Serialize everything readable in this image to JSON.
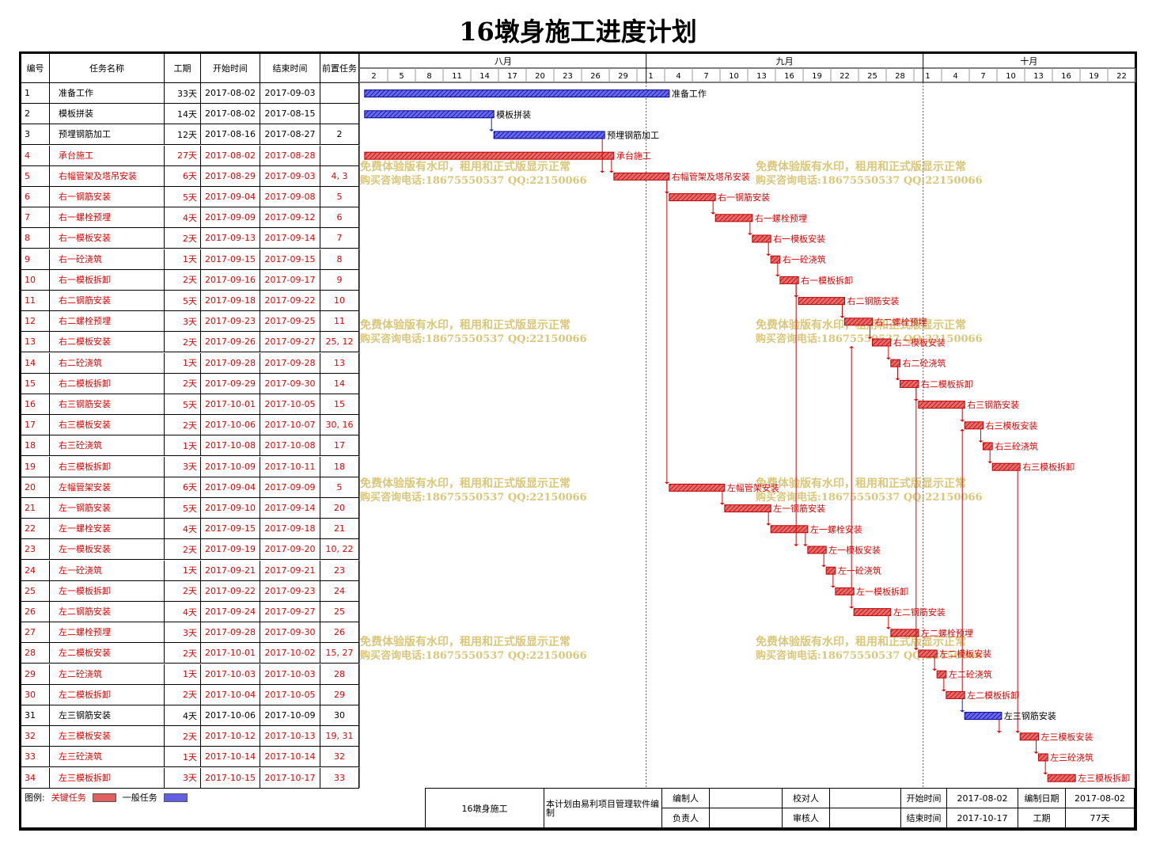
{
  "title": "16墩身施工进度计划",
  "headers": {
    "id": "编号",
    "name": "任务名称",
    "dur": "工期",
    "start": "开始时间",
    "end": "结束时间",
    "pred": "前置任务"
  },
  "months": [
    "八月",
    "九月",
    "十月"
  ],
  "day_ticks": [
    "2",
    "5",
    "8",
    "11",
    "14",
    "17",
    "20",
    "23",
    "26",
    "29",
    "1",
    "4",
    "7",
    "10",
    "13",
    "16",
    "19",
    "22",
    "25",
    "28",
    "1",
    "4",
    "7",
    "10",
    "13",
    "16",
    "19",
    "22"
  ],
  "watermark": {
    "line1": "免费体验版有水印，租用和正式版显示正常",
    "line2": "购买咨询电话:18675550537 QQ:22150066"
  },
  "colors": {
    "critical": "#e00000",
    "normal": "#2020c0",
    "watermark": "#d6c06a"
  },
  "chart_data": {
    "type": "gantt",
    "title": "16墩身施工进度计划",
    "x_range": [
      "2017-08-01",
      "2017-10-23"
    ],
    "tasks": [
      {
        "id": "1",
        "name": "准备工作",
        "dur": "33天",
        "start": "2017-08-02",
        "end": "2017-09-03",
        "pred": "",
        "critical": false
      },
      {
        "id": "2",
        "name": "模板拼装",
        "dur": "14天",
        "start": "2017-08-02",
        "end": "2017-08-15",
        "pred": "",
        "critical": false
      },
      {
        "id": "3",
        "name": "预埋钢筋加工",
        "dur": "12天",
        "start": "2017-08-16",
        "end": "2017-08-27",
        "pred": "2",
        "critical": false
      },
      {
        "id": "4",
        "name": "承台施工",
        "dur": "27天",
        "start": "2017-08-02",
        "end": "2017-08-28",
        "pred": "",
        "critical": true
      },
      {
        "id": "5",
        "name": "右幅管架及塔吊安装",
        "dur": "6天",
        "start": "2017-08-29",
        "end": "2017-09-03",
        "pred": "4, 3",
        "critical": true
      },
      {
        "id": "6",
        "name": "右一钢筋安装",
        "dur": "5天",
        "start": "2017-09-04",
        "end": "2017-09-08",
        "pred": "5",
        "critical": true
      },
      {
        "id": "7",
        "name": "右一螺栓预埋",
        "dur": "4天",
        "start": "2017-09-09",
        "end": "2017-09-12",
        "pred": "6",
        "critical": true
      },
      {
        "id": "8",
        "name": "右一模板安装",
        "dur": "2天",
        "start": "2017-09-13",
        "end": "2017-09-14",
        "pred": "7",
        "critical": true
      },
      {
        "id": "9",
        "name": "右一砼浇筑",
        "dur": "1天",
        "start": "2017-09-15",
        "end": "2017-09-15",
        "pred": "8",
        "critical": true
      },
      {
        "id": "10",
        "name": "右一模板拆卸",
        "dur": "2天",
        "start": "2017-09-16",
        "end": "2017-09-17",
        "pred": "9",
        "critical": true
      },
      {
        "id": "11",
        "name": "右二钢筋安装",
        "dur": "5天",
        "start": "2017-09-18",
        "end": "2017-09-22",
        "pred": "10",
        "critical": true
      },
      {
        "id": "12",
        "name": "右二螺栓预埋",
        "dur": "3天",
        "start": "2017-09-23",
        "end": "2017-09-25",
        "pred": "11",
        "critical": true
      },
      {
        "id": "13",
        "name": "右二模板安装",
        "dur": "2天",
        "start": "2017-09-26",
        "end": "2017-09-27",
        "pred": "25, 12",
        "critical": true
      },
      {
        "id": "14",
        "name": "右二砼浇筑",
        "dur": "1天",
        "start": "2017-09-28",
        "end": "2017-09-28",
        "pred": "13",
        "critical": true
      },
      {
        "id": "15",
        "name": "右二模板拆卸",
        "dur": "2天",
        "start": "2017-09-29",
        "end": "2017-09-30",
        "pred": "14",
        "critical": true
      },
      {
        "id": "16",
        "name": "右三钢筋安装",
        "dur": "5天",
        "start": "2017-10-01",
        "end": "2017-10-05",
        "pred": "15",
        "critical": true
      },
      {
        "id": "17",
        "name": "右三模板安装",
        "dur": "2天",
        "start": "2017-10-06",
        "end": "2017-10-07",
        "pred": "30, 16",
        "critical": true
      },
      {
        "id": "18",
        "name": "右三砼浇筑",
        "dur": "1天",
        "start": "2017-10-08",
        "end": "2017-10-08",
        "pred": "17",
        "critical": true
      },
      {
        "id": "19",
        "name": "右三模板拆卸",
        "dur": "3天",
        "start": "2017-10-09",
        "end": "2017-10-11",
        "pred": "18",
        "critical": true
      },
      {
        "id": "20",
        "name": "左幅管架安装",
        "dur": "6天",
        "start": "2017-09-04",
        "end": "2017-09-09",
        "pred": "5",
        "critical": true
      },
      {
        "id": "21",
        "name": "左一钢筋安装",
        "dur": "5天",
        "start": "2017-09-10",
        "end": "2017-09-14",
        "pred": "20",
        "critical": true
      },
      {
        "id": "22",
        "name": "左一螺栓安装",
        "dur": "4天",
        "start": "2017-09-15",
        "end": "2017-09-18",
        "pred": "21",
        "critical": true
      },
      {
        "id": "23",
        "name": "左一模板安装",
        "dur": "2天",
        "start": "2017-09-19",
        "end": "2017-09-20",
        "pred": "10, 22",
        "critical": true
      },
      {
        "id": "24",
        "name": "左一砼浇筑",
        "dur": "1天",
        "start": "2017-09-21",
        "end": "2017-09-21",
        "pred": "23",
        "critical": true
      },
      {
        "id": "25",
        "name": "左一模板拆卸",
        "dur": "2天",
        "start": "2017-09-22",
        "end": "2017-09-23",
        "pred": "24",
        "critical": true
      },
      {
        "id": "26",
        "name": "左二钢筋安装",
        "dur": "4天",
        "start": "2017-09-24",
        "end": "2017-09-27",
        "pred": "25",
        "critical": true
      },
      {
        "id": "27",
        "name": "左二螺栓预埋",
        "dur": "3天",
        "start": "2017-09-28",
        "end": "2017-09-30",
        "pred": "26",
        "critical": true
      },
      {
        "id": "28",
        "name": "左二模板安装",
        "dur": "2天",
        "start": "2017-10-01",
        "end": "2017-10-02",
        "pred": "15, 27",
        "critical": true
      },
      {
        "id": "29",
        "name": "左二砼浇筑",
        "dur": "1天",
        "start": "2017-10-03",
        "end": "2017-10-03",
        "pred": "28",
        "critical": true
      },
      {
        "id": "30",
        "name": "左二模板拆卸",
        "dur": "2天",
        "start": "2017-10-04",
        "end": "2017-10-05",
        "pred": "29",
        "critical": true
      },
      {
        "id": "31",
        "name": "左三钢筋安装",
        "dur": "4天",
        "start": "2017-10-06",
        "end": "2017-10-09",
        "pred": "30",
        "critical": false
      },
      {
        "id": "32",
        "name": "左三模板安装",
        "dur": "2天",
        "start": "2017-10-12",
        "end": "2017-10-13",
        "pred": "19, 31",
        "critical": true
      },
      {
        "id": "33",
        "name": "左三砼浇筑",
        "dur": "1天",
        "start": "2017-10-14",
        "end": "2017-10-14",
        "pred": "32",
        "critical": true
      },
      {
        "id": "34",
        "name": "左三模板拆卸",
        "dur": "3天",
        "start": "2017-10-15",
        "end": "2017-10-17",
        "pred": "33",
        "critical": true
      }
    ]
  },
  "footer": {
    "legend_label": "图例:",
    "legend_critical": "关键任务",
    "legend_normal": "一般任务",
    "project": "16墩身施工",
    "software": "本计划由易利项目管理软件编制",
    "editor_label": "编制人",
    "checker_label": "校对人",
    "owner_label": "负责人",
    "reviewer_label": "审核人",
    "start_label": "开始时间",
    "start_value": "2017-08-02",
    "edit_date_label": "编制日期",
    "edit_date_value": "2017-08-02",
    "end_label": "结束时间",
    "end_value": "2017-10-17",
    "dur_label": "工期",
    "dur_value": "77天"
  }
}
